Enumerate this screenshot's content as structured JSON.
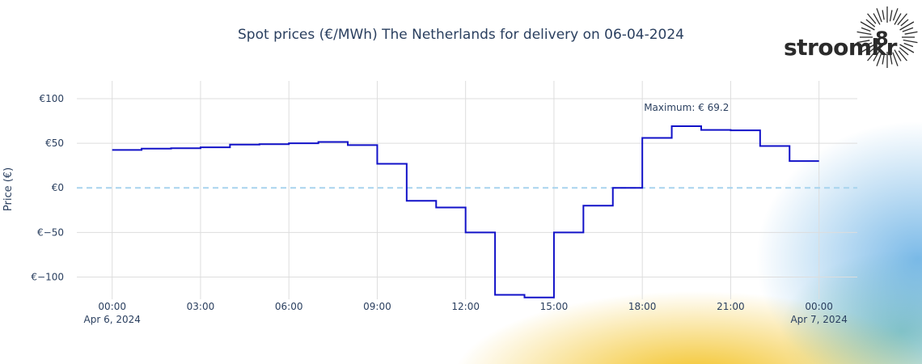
{
  "logo": {
    "text": "stroomkr",
    "digit": "8"
  },
  "chart_data": {
    "type": "line",
    "line_shape": "step",
    "title": "Spot prices (€/MWh) The Netherlands for delivery on 06-04-2024",
    "ylabel": "Price (€)",
    "xlabel": "",
    "x_range_hours": [
      -1.2,
      25.3
    ],
    "ylim": [
      -125,
      120
    ],
    "grid": true,
    "x_ticks": [
      {
        "h": 0,
        "label": "00:00",
        "sub": "Apr 6, 2024"
      },
      {
        "h": 3,
        "label": "03:00",
        "sub": ""
      },
      {
        "h": 6,
        "label": "06:00",
        "sub": ""
      },
      {
        "h": 9,
        "label": "09:00",
        "sub": ""
      },
      {
        "h": 12,
        "label": "12:00",
        "sub": ""
      },
      {
        "h": 15,
        "label": "15:00",
        "sub": ""
      },
      {
        "h": 18,
        "label": "18:00",
        "sub": ""
      },
      {
        "h": 21,
        "label": "21:00",
        "sub": ""
      },
      {
        "h": 24,
        "label": "00:00",
        "sub": "Apr 7, 2024"
      }
    ],
    "y_ticks": [
      {
        "v": 100,
        "label": "€100"
      },
      {
        "v": 50,
        "label": "€50"
      },
      {
        "v": 0,
        "label": "€0"
      },
      {
        "v": -50,
        "label": "€−50"
      },
      {
        "v": -100,
        "label": "€−100"
      }
    ],
    "series": [
      {
        "color": "#1212c8",
        "hours": [
          0,
          1,
          2,
          3,
          4,
          5,
          6,
          7,
          8,
          9,
          10,
          11,
          12,
          13,
          14,
          15,
          16,
          17,
          18,
          19,
          20,
          21,
          22,
          23,
          24
        ],
        "values": [
          42.5,
          44,
          44.5,
          45.5,
          48.5,
          49,
          50,
          51.5,
          48,
          27,
          -14.5,
          -22,
          -50,
          -120,
          -123,
          -50,
          -20,
          0,
          56,
          69.2,
          65,
          64.5,
          47,
          30,
          30
        ]
      }
    ],
    "reference_line": {
      "value": 0,
      "color": "#a8d4ee"
    },
    "annotation": {
      "text": "Maximum: € 69.2",
      "h": 19.5,
      "value": 100
    }
  }
}
